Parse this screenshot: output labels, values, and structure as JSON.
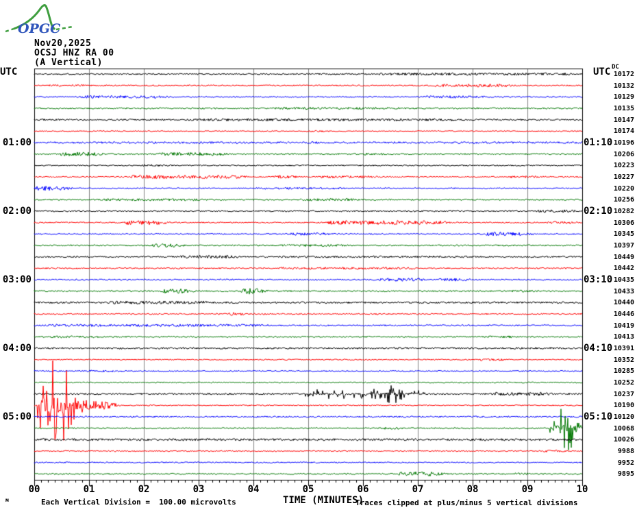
{
  "logo": {
    "text": "OPGC",
    "green": "#3f9e3f",
    "blue": "#2f55bb"
  },
  "header": {
    "date": "Nov20,2025",
    "station": "OCSJ HNZ RA 00",
    "component": "(A Vertical)"
  },
  "axis_labels": {
    "utc_left": "UTC",
    "utc_right": "UTC",
    "dc": "DC"
  },
  "time_axis": {
    "left_labels": [
      {
        "row": 6,
        "text": "01:00"
      },
      {
        "row": 12,
        "text": "02:00"
      },
      {
        "row": 18,
        "text": "03:00"
      },
      {
        "row": 24,
        "text": "04:00"
      },
      {
        "row": 30,
        "text": "05:00"
      }
    ],
    "right_labels": [
      {
        "row": 6,
        "text": "01:10"
      },
      {
        "row": 12,
        "text": "02:10"
      },
      {
        "row": 18,
        "text": "03:10"
      },
      {
        "row": 24,
        "text": "04:10"
      },
      {
        "row": 30,
        "text": "05:10"
      }
    ]
  },
  "footer": {
    "scale_text": "Each Vertical Division =  100.00 microvolts",
    "axis_title": "TIME (MINUTES)",
    "clip_text": "Traces clipped at plus/minus 5 vertical divisions",
    "tiny": "м"
  },
  "chart_data": {
    "type": "line",
    "subtype": "helicorder-seismogram",
    "title": "OCSJ HNZ RA 00 (A Vertical) Nov20,2025",
    "xlabel": "TIME (MINUTES)",
    "x_ticks": [
      "00",
      "01",
      "02",
      "03",
      "04",
      "05",
      "06",
      "07",
      "08",
      "09",
      "10"
    ],
    "xlim": [
      0,
      10
    ],
    "minutes_per_line": 10,
    "minor_ticks_per_minute": 8,
    "clip_divisions": 5,
    "microvolts_per_division": 100.0,
    "grid": true,
    "grid_color": "#808080",
    "colors_cycle": [
      "#000000",
      "#ff0000",
      "#0000ff",
      "#007700"
    ],
    "traces": [
      {
        "start": "00:00",
        "dc": 10172,
        "base": 1.1,
        "events": [
          [
            6.3,
            9.7,
            1.8
          ]
        ]
      },
      {
        "start": "00:10",
        "dc": 10132,
        "base": 0.9,
        "events": [
          [
            0.3,
            0.9,
            1.5
          ],
          [
            7.3,
            8.6,
            2.2
          ]
        ]
      },
      {
        "start": "00:20",
        "dc": 10129,
        "base": 0.9,
        "events": [
          [
            0.9,
            2.3,
            2.2
          ],
          [
            7.1,
            8.1,
            1.8
          ]
        ]
      },
      {
        "start": "00:30",
        "dc": 10135,
        "base": 1.1,
        "events": [
          [
            4.4,
            6.6,
            1.6
          ]
        ]
      },
      {
        "start": "00:40",
        "dc": 10147,
        "base": 1.2,
        "events": [
          [
            2.8,
            7.6,
            1.8
          ]
        ]
      },
      {
        "start": "00:50",
        "dc": 10174,
        "base": 0.8,
        "events": [
          [
            5.0,
            5.3,
            1.5
          ]
        ]
      },
      {
        "start": "01:00",
        "dc": 10196,
        "base": 1.4,
        "events": []
      },
      {
        "start": "01:10",
        "dc": 10206,
        "base": 1.0,
        "events": [
          [
            0.5,
            1.1,
            2.8
          ],
          [
            2.3,
            3.4,
            2.2
          ],
          [
            6.0,
            6.4,
            1.5
          ]
        ]
      },
      {
        "start": "01:20",
        "dc": 10223,
        "base": 0.9,
        "events": [
          [
            2.0,
            2.3,
            1.5
          ]
        ]
      },
      {
        "start": "01:30",
        "dc": 10227,
        "base": 0.9,
        "events": [
          [
            1.8,
            3.7,
            2.6
          ],
          [
            4.4,
            4.7,
            2.2
          ],
          [
            5.2,
            6.3,
            1.8
          ],
          [
            8.7,
            9.2,
            1.6
          ]
        ]
      },
      {
        "start": "01:40",
        "dc": 10220,
        "base": 0.9,
        "events": [
          [
            0.0,
            0.5,
            3.2
          ],
          [
            4.2,
            5.6,
            1.5
          ]
        ]
      },
      {
        "start": "01:50",
        "dc": 10256,
        "base": 1.0,
        "events": [
          [
            1.2,
            3.0,
            1.8
          ],
          [
            4.9,
            5.8,
            1.8
          ]
        ]
      },
      {
        "start": "02:00",
        "dc": 10282,
        "base": 1.0,
        "events": [
          [
            9.2,
            9.8,
            2.2
          ]
        ]
      },
      {
        "start": "02:10",
        "dc": 10306,
        "base": 0.9,
        "events": [
          [
            1.7,
            2.3,
            3.2
          ],
          [
            5.4,
            7.4,
            3.0
          ],
          [
            9.4,
            9.8,
            1.8
          ]
        ]
      },
      {
        "start": "02:20",
        "dc": 10345,
        "base": 0.9,
        "events": [
          [
            4.7,
            5.3,
            2.0
          ],
          [
            8.3,
            8.9,
            2.8
          ]
        ]
      },
      {
        "start": "02:30",
        "dc": 10397,
        "base": 1.0,
        "events": [
          [
            2.2,
            2.6,
            2.6
          ],
          [
            4.5,
            5.6,
            1.6
          ]
        ]
      },
      {
        "start": "02:40",
        "dc": 10449,
        "base": 1.1,
        "events": [
          [
            2.7,
            3.6,
            2.4
          ],
          [
            4.5,
            8.0,
            1.5
          ]
        ]
      },
      {
        "start": "02:50",
        "dc": 10442,
        "base": 1.0,
        "events": [
          [
            4.5,
            6.9,
            1.6
          ]
        ]
      },
      {
        "start": "03:00",
        "dc": 10435,
        "base": 1.0,
        "events": [
          [
            6.3,
            7.0,
            2.4
          ],
          [
            7.4,
            7.8,
            2.2
          ]
        ]
      },
      {
        "start": "03:10",
        "dc": 10433,
        "base": 1.0,
        "events": [
          [
            2.4,
            2.7,
            3.4
          ],
          [
            3.85,
            4.05,
            4.5
          ],
          [
            8.6,
            9.2,
            1.5
          ]
        ]
      },
      {
        "start": "03:20",
        "dc": 10440,
        "base": 1.3,
        "events": [
          [
            1.4,
            3.1,
            2.2
          ]
        ]
      },
      {
        "start": "03:30",
        "dc": 10446,
        "base": 1.0,
        "events": [
          [
            3.6,
            3.75,
            2.5
          ]
        ]
      },
      {
        "start": "03:40",
        "dc": 10419,
        "base": 1.0,
        "events": [
          [
            0.2,
            4.2,
            1.8
          ]
        ]
      },
      {
        "start": "03:50",
        "dc": 10413,
        "base": 1.0,
        "events": [
          [
            0.3,
            1.2,
            1.5
          ],
          [
            8.2,
            8.7,
            1.5
          ]
        ]
      },
      {
        "start": "04:00",
        "dc": 10391,
        "base": 1.3,
        "events": []
      },
      {
        "start": "04:10",
        "dc": 10352,
        "base": 0.8,
        "events": [
          [
            8.1,
            8.5,
            1.8
          ]
        ]
      },
      {
        "start": "04:20",
        "dc": 10285,
        "base": 0.9,
        "events": [
          [
            1.0,
            1.6,
            1.5
          ]
        ]
      },
      {
        "start": "04:30",
        "dc": 10252,
        "base": 0.9,
        "events": []
      },
      {
        "start": "04:40",
        "dc": 10237,
        "base": 1.2,
        "events": [
          [
            5.0,
            6.9,
            7.5
          ],
          [
            6.45,
            6.6,
            13
          ],
          [
            8.4,
            9.3,
            2.6
          ]
        ]
      },
      {
        "start": "04:50",
        "dc": 10190,
        "base": 0.8,
        "events": [
          [
            0.0,
            0.15,
            8
          ],
          [
            0.15,
            0.5,
            75
          ],
          [
            0.5,
            0.75,
            18
          ],
          [
            0.75,
            1.3,
            6
          ]
        ]
      },
      {
        "start": "05:00",
        "dc": 10120,
        "base": 1.1,
        "events": []
      },
      {
        "start": "05:10",
        "dc": 10068,
        "base": 0.9,
        "events": [
          [
            6.3,
            6.6,
            1.8
          ],
          [
            9.5,
            9.8,
            32
          ]
        ]
      },
      {
        "start": "05:20",
        "dc": 10026,
        "base": 1.6,
        "events": []
      },
      {
        "start": "05:30",
        "dc": 9988,
        "base": 0.9,
        "events": [
          [
            9.3,
            9.6,
            1.5
          ]
        ]
      },
      {
        "start": "05:40",
        "dc": 9952,
        "base": 0.9,
        "events": []
      },
      {
        "start": "05:50",
        "dc": 9895,
        "base": 1.0,
        "events": [
          [
            6.7,
            7.3,
            3.2
          ],
          [
            8.8,
            9.0,
            1.6
          ]
        ]
      }
    ]
  }
}
